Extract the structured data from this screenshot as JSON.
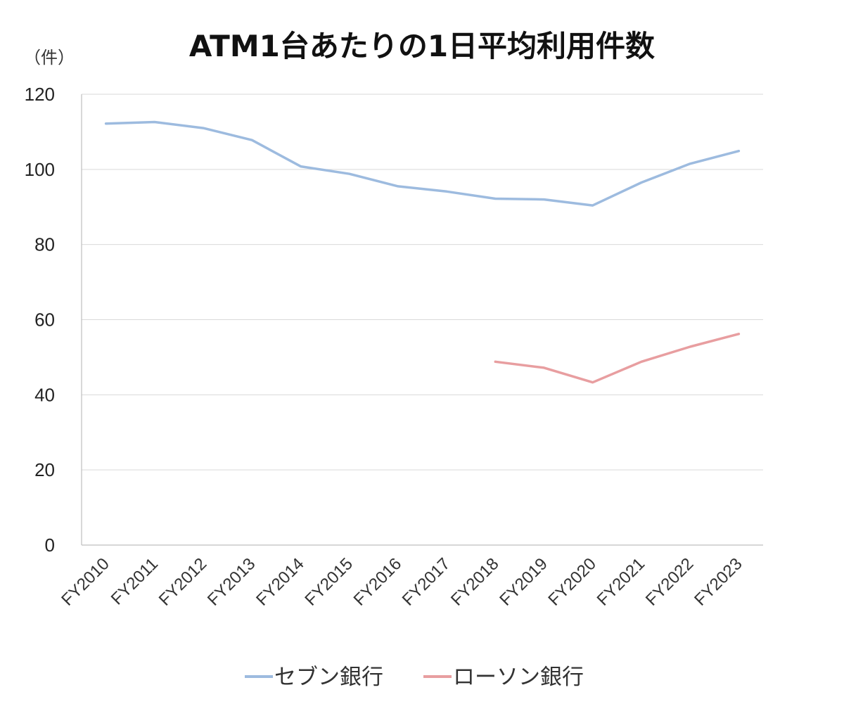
{
  "chart_data": {
    "type": "line",
    "title": "ATM1台あたりの1日平均利用件数",
    "unit_label": "（件）",
    "xlabel": "",
    "ylabel": "",
    "ylim": [
      0,
      120
    ],
    "yticks": [
      0,
      20,
      40,
      60,
      80,
      100,
      120
    ],
    "grid": true,
    "legend_position": "bottom",
    "categories": [
      "FY2010",
      "FY2011",
      "FY2012",
      "FY2013",
      "FY2014",
      "FY2015",
      "FY2016",
      "FY2017",
      "FY2018",
      "FY2019",
      "FY2020",
      "FY2021",
      "FY2022",
      "FY2023"
    ],
    "series": [
      {
        "name": "セブン銀行",
        "color": "#9dbbdf",
        "values": [
          112.2,
          112.6,
          111.0,
          107.8,
          100.8,
          98.8,
          95.5,
          94.1,
          92.2,
          92.0,
          90.4,
          96.5,
          101.5,
          104.9
        ]
      },
      {
        "name": "ローソン銀行",
        "color": "#e89ea0",
        "values": [
          null,
          null,
          null,
          null,
          null,
          null,
          null,
          null,
          48.8,
          47.2,
          43.3,
          48.8,
          52.8,
          56.2
        ]
      }
    ]
  }
}
